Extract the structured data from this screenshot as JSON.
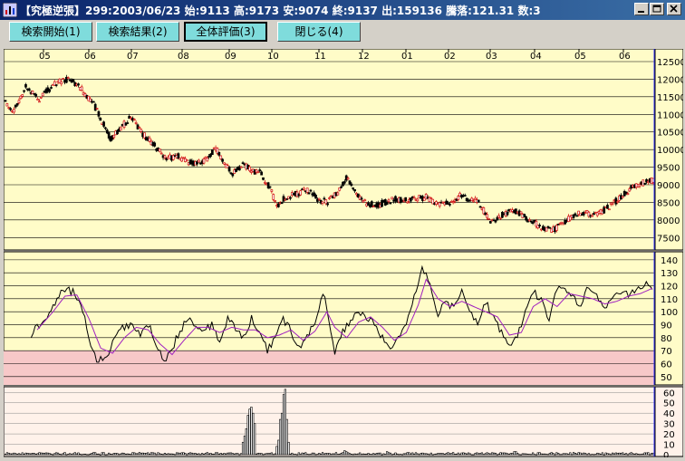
{
  "window": {
    "title": "【究極逆張】299:2003/06/23 始:9113 高:9173 安:9074 終:9137 出:159136 騰落:121.31 数:3",
    "buttons": [
      "minimize",
      "maximize",
      "close"
    ]
  },
  "toolbar": {
    "buttons": [
      {
        "label": "検索開始(1)"
      },
      {
        "label": "検索結果(2)"
      },
      {
        "label": "全体評価(3)",
        "active": true
      },
      {
        "label": "閉じる(4)"
      }
    ]
  },
  "colors": {
    "price_bg": "#fffcc8",
    "osc_bg": "#fffcc8",
    "osc_band": "#f7c8c8",
    "volume_bg": "#fff2ea",
    "up_candle": "#d01010",
    "down_candle": "#000000",
    "osc_fast": "#000000",
    "osc_slow": "#a020c0",
    "current_line": "#3030ff"
  },
  "chart_data": [
    {
      "type": "candlestick",
      "panel": "price",
      "x_tick_labels": [
        "05",
        "06",
        "07",
        "08",
        "09",
        "10",
        "11",
        "12",
        "01",
        "02",
        "03",
        "04",
        "05",
        "06"
      ],
      "y_ticks": [
        7500,
        8000,
        8500,
        9000,
        9500,
        10000,
        10500,
        11000,
        11500,
        12000,
        12500
      ],
      "ylim": [
        7250,
        12500
      ],
      "close_keypoints": [
        [
          0,
          11350
        ],
        [
          5,
          11100
        ],
        [
          12,
          11800
        ],
        [
          20,
          11450
        ],
        [
          30,
          11900
        ],
        [
          38,
          12000
        ],
        [
          45,
          11700
        ],
        [
          52,
          11300
        ],
        [
          58,
          10700
        ],
        [
          62,
          10300
        ],
        [
          68,
          10600
        ],
        [
          74,
          10950
        ],
        [
          80,
          10500
        ],
        [
          88,
          10100
        ],
        [
          95,
          9750
        ],
        [
          102,
          9800
        ],
        [
          110,
          9600
        ],
        [
          118,
          9700
        ],
        [
          124,
          10050
        ],
        [
          128,
          9700
        ],
        [
          134,
          9300
        ],
        [
          140,
          9600
        ],
        [
          145,
          9400
        ],
        [
          150,
          9350
        ],
        [
          156,
          8900
        ],
        [
          160,
          8400
        ],
        [
          165,
          8650
        ],
        [
          172,
          8750
        ],
        [
          178,
          8850
        ],
        [
          184,
          8600
        ],
        [
          190,
          8500
        ],
        [
          196,
          8800
        ],
        [
          201,
          9200
        ],
        [
          206,
          8800
        ],
        [
          212,
          8500
        ],
        [
          218,
          8400
        ],
        [
          224,
          8500
        ],
        [
          230,
          8600
        ],
        [
          236,
          8550
        ],
        [
          242,
          8600
        ],
        [
          248,
          8650
        ],
        [
          254,
          8450
        ],
        [
          262,
          8500
        ],
        [
          268,
          8700
        ],
        [
          274,
          8600
        ],
        [
          280,
          8450
        ],
        [
          286,
          7900
        ],
        [
          292,
          8100
        ],
        [
          298,
          8300
        ],
        [
          304,
          8150
        ],
        [
          310,
          7950
        ],
        [
          316,
          7800
        ],
        [
          322,
          7700
        ],
        [
          328,
          7850
        ],
        [
          334,
          8100
        ],
        [
          340,
          8200
        ],
        [
          346,
          8150
        ],
        [
          352,
          8250
        ],
        [
          358,
          8450
        ],
        [
          364,
          8700
        ],
        [
          370,
          8950
        ],
        [
          376,
          9050
        ],
        [
          382,
          9137
        ]
      ]
    },
    {
      "type": "line",
      "panel": "oscillator",
      "y_ticks": [
        50,
        60,
        70,
        80,
        90,
        100,
        110,
        120,
        130,
        140
      ],
      "ylim": [
        45,
        142
      ],
      "band": [
        45,
        70
      ],
      "series": [
        {
          "key": "fast",
          "keypoints": [
            [
              13,
              83
            ],
            [
              20,
              95
            ],
            [
              26,
              110
            ],
            [
              30,
              118
            ],
            [
              34,
              115
            ],
            [
              38,
              108
            ],
            [
              42,
              80
            ],
            [
              46,
              62
            ],
            [
              50,
              64
            ],
            [
              54,
              75
            ],
            [
              58,
              88
            ],
            [
              64,
              90
            ],
            [
              68,
              82
            ],
            [
              72,
              90
            ],
            [
              76,
              75
            ],
            [
              80,
              60
            ],
            [
              84,
              72
            ],
            [
              88,
              85
            ],
            [
              92,
              96
            ],
            [
              96,
              90
            ],
            [
              100,
              85
            ],
            [
              104,
              90
            ],
            [
              108,
              78
            ],
            [
              112,
              95
            ],
            [
              116,
              88
            ],
            [
              120,
              80
            ],
            [
              124,
              95
            ],
            [
              128,
              83
            ],
            [
              132,
              70
            ],
            [
              136,
              80
            ],
            [
              140,
              95
            ],
            [
              144,
              85
            ],
            [
              148,
              72
            ],
            [
              152,
              80
            ],
            [
              156,
              93
            ],
            [
              160,
              115
            ],
            [
              163,
              95
            ],
            [
              166,
              68
            ],
            [
              170,
              85
            ],
            [
              174,
              92
            ],
            [
              178,
              100
            ],
            [
              182,
              95
            ],
            [
              186,
              92
            ],
            [
              190,
              80
            ],
            [
              194,
              74
            ],
            [
              198,
              78
            ],
            [
              202,
              90
            ],
            [
              206,
              112
            ],
            [
              210,
              135
            ],
            [
              214,
              120
            ],
            [
              218,
              98
            ],
            [
              222,
              108
            ],
            [
              226,
              102
            ],
            [
              230,
              118
            ],
            [
              234,
              100
            ],
            [
              238,
              92
            ],
            [
              242,
              108
            ],
            [
              246,
              95
            ],
            [
              250,
              84
            ],
            [
              254,
              72
            ],
            [
              258,
              80
            ],
            [
              262,
              100
            ],
            [
              266,
              116
            ],
            [
              270,
              108
            ],
            [
              274,
              95
            ],
            [
              278,
              118
            ],
            [
              282,
              120
            ],
            [
              286,
              110
            ],
            [
              290,
              105
            ],
            [
              294,
              120
            ],
            [
              298,
              112
            ],
            [
              302,
              100
            ],
            [
              306,
              110
            ],
            [
              310,
              116
            ],
            [
              314,
              112
            ],
            [
              318,
              118
            ],
            [
              322,
              122
            ],
            [
              326,
              116
            ]
          ]
        },
        {
          "key": "slow",
          "keypoints": [
            [
              16,
              86
            ],
            [
              24,
              100
            ],
            [
              30,
              112
            ],
            [
              36,
              113
            ],
            [
              42,
              95
            ],
            [
              48,
              72
            ],
            [
              54,
              68
            ],
            [
              60,
              80
            ],
            [
              66,
              88
            ],
            [
              72,
              86
            ],
            [
              78,
              75
            ],
            [
              84,
              67
            ],
            [
              90,
              78
            ],
            [
              96,
              88
            ],
            [
              102,
              88
            ],
            [
              108,
              84
            ],
            [
              114,
              88
            ],
            [
              120,
              86
            ],
            [
              126,
              86
            ],
            [
              132,
              80
            ],
            [
              138,
              82
            ],
            [
              144,
              86
            ],
            [
              150,
              78
            ],
            [
              156,
              85
            ],
            [
              162,
              100
            ],
            [
              166,
              88
            ],
            [
              172,
              80
            ],
            [
              178,
              92
            ],
            [
              184,
              96
            ],
            [
              190,
              88
            ],
            [
              196,
              78
            ],
            [
              202,
              84
            ],
            [
              208,
              105
            ],
            [
              212,
              125
            ],
            [
              218,
              110
            ],
            [
              224,
              104
            ],
            [
              230,
              108
            ],
            [
              236,
              104
            ],
            [
              242,
              100
            ],
            [
              248,
              96
            ],
            [
              254,
              82
            ],
            [
              260,
              84
            ],
            [
              266,
              104
            ],
            [
              272,
              110
            ],
            [
              278,
              104
            ],
            [
              284,
              114
            ],
            [
              290,
              112
            ],
            [
              296,
              110
            ],
            [
              302,
              106
            ],
            [
              308,
              108
            ],
            [
              314,
              112
            ],
            [
              320,
              114
            ],
            [
              326,
              118
            ]
          ]
        }
      ]
    },
    {
      "type": "bar",
      "panel": "volume",
      "y_ticks": [
        0,
        10,
        20,
        30,
        40,
        50,
        60
      ],
      "ylim": [
        0,
        62
      ],
      "spikes": [
        [
          140,
          12
        ],
        [
          141,
          18
        ],
        [
          142,
          25
        ],
        [
          143,
          38
        ],
        [
          144,
          44
        ],
        [
          145,
          46
        ],
        [
          146,
          40
        ],
        [
          147,
          30
        ],
        [
          160,
          8
        ],
        [
          161,
          14
        ],
        [
          162,
          34
        ],
        [
          163,
          40
        ],
        [
          164,
          58
        ],
        [
          165,
          63
        ],
        [
          166,
          34
        ],
        [
          167,
          12
        ],
        [
          200,
          4
        ],
        [
          201,
          3
        ],
        [
          225,
          3
        ],
        [
          226,
          2
        ],
        [
          300,
          3
        ],
        [
          301,
          3
        ]
      ]
    }
  ]
}
